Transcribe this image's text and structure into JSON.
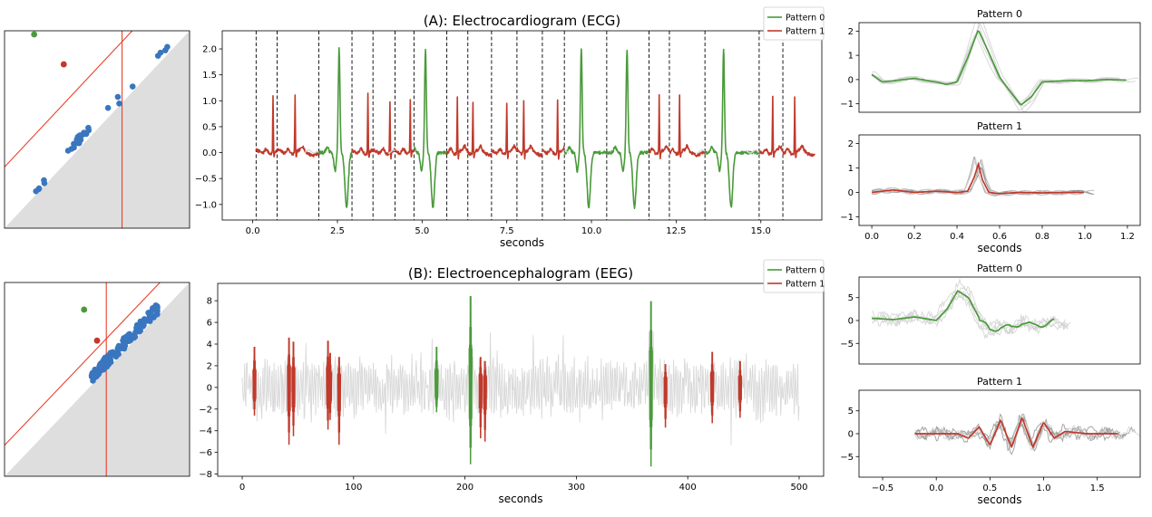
{
  "colors": {
    "pattern0": "#4a9a3b",
    "pattern1": "#c0392b",
    "threshold": "#e8412c",
    "points": "#3a76bf",
    "background_signal": "#d8d8d8",
    "diagram_fill": "#dedede",
    "overlay": "#8f8f8f"
  },
  "chart_data": [
    {
      "id": "persistence-ecg",
      "type": "scatter",
      "title": "",
      "grid": false,
      "ticks": false,
      "shaded_region": "below diagonal",
      "threshold_lines": [
        "diagonal offset line",
        "vertical line"
      ],
      "points_highlighted": [
        {
          "color": "pattern0",
          "x": 0.16,
          "y": 1.0
        },
        {
          "color": "pattern1",
          "x": 0.32,
          "y": 0.83
        }
      ],
      "points_cluster": "blue points spread along the diagonal"
    },
    {
      "id": "ecg",
      "type": "line",
      "title": "(A): Electrocardiogram (ECG)",
      "xlabel": "seconds",
      "ylabel": "",
      "xlim": [
        -0.9,
        16.8
      ],
      "ylim": [
        -1.3,
        2.35
      ],
      "xticks": [
        0.0,
        2.5,
        5.0,
        7.5,
        10.0,
        12.5,
        15.0
      ],
      "xtick_labels": [
        "0.0",
        "2.5",
        "5.0",
        "7.5",
        "10.0",
        "12.5",
        "15.0"
      ],
      "yticks": [
        -1.0,
        -0.5,
        0.0,
        0.5,
        1.0,
        1.5,
        2.0
      ],
      "ytick_labels": [
        "−1.0",
        "−0.5",
        "0.0",
        "0.5",
        "1.0",
        "1.5",
        "2.0"
      ],
      "legend": {
        "placement": "top-right",
        "entries": [
          "Pattern 0",
          "Pattern 1"
        ]
      },
      "series": [
        {
          "name": "Pattern 0",
          "color": "pattern0",
          "beats_at_seconds": [
            2.55,
            5.1,
            9.7,
            11.05,
            13.9
          ]
        },
        {
          "name": "Pattern 1",
          "color": "pattern1",
          "beats_at_seconds": [
            0.6,
            1.25,
            2.85,
            3.4,
            4.05,
            4.65,
            6.5,
            6.9,
            7.5,
            8.0,
            8.5,
            9.0,
            11.4,
            12.6,
            15.35,
            16.0
          ]
        }
      ],
      "segment_boundaries_seconds": [
        0.1,
        0.72,
        1.95,
        2.93,
        3.55,
        4.2,
        4.76,
        5.73,
        6.35,
        7.05,
        7.8,
        8.55,
        9.2,
        10.45,
        11.7,
        12.3,
        13.35,
        14.95,
        15.65
      ]
    },
    {
      "id": "ecg-pattern0",
      "type": "line",
      "title": "Pattern 0",
      "xlim": [
        -0.06,
        1.26
      ],
      "ylim": [
        -1.35,
        2.35
      ],
      "yticks": [
        -1,
        0,
        1,
        2
      ],
      "ytick_labels": [
        "−1",
        "0",
        "1",
        "2"
      ],
      "series": [
        {
          "name": "Pattern 0",
          "color": "pattern0",
          "x": [
            0.0,
            0.05,
            0.1,
            0.2,
            0.3,
            0.35,
            0.4,
            0.45,
            0.5,
            0.55,
            0.6,
            0.65,
            0.7,
            0.75,
            0.8,
            0.9,
            1.0,
            1.1,
            1.2
          ],
          "y": [
            0.2,
            -0.1,
            -0.05,
            0.05,
            -0.1,
            -0.2,
            -0.1,
            0.9,
            2.05,
            1.1,
            0.1,
            -0.5,
            -1.05,
            -0.7,
            -0.1,
            -0.05,
            -0.05,
            0.0,
            -0.02
          ]
        }
      ]
    },
    {
      "id": "ecg-pattern1",
      "type": "line",
      "title": "Pattern 1",
      "xlabel": "seconds",
      "xlim": [
        -0.06,
        1.26
      ],
      "ylim": [
        -1.35,
        2.35
      ],
      "xticks": [
        0.0,
        0.2,
        0.4,
        0.6,
        0.8,
        1.0,
        1.2
      ],
      "xtick_labels": [
        "0.0",
        "0.2",
        "0.4",
        "0.6",
        "0.8",
        "1.0",
        "1.2"
      ],
      "yticks": [
        -1,
        0,
        1,
        2
      ],
      "ytick_labels": [
        "−1",
        "0",
        "1",
        "2"
      ],
      "series": [
        {
          "name": "Pattern 1",
          "color": "pattern1",
          "x": [
            0.0,
            0.1,
            0.2,
            0.3,
            0.4,
            0.45,
            0.48,
            0.5,
            0.52,
            0.55,
            0.6,
            0.7,
            0.8,
            0.9,
            1.0
          ],
          "y": [
            0.0,
            0.1,
            0.0,
            0.05,
            0.0,
            0.05,
            0.6,
            1.15,
            0.5,
            0.0,
            -0.05,
            0.0,
            -0.02,
            0.0,
            0.0
          ]
        }
      ]
    },
    {
      "id": "persistence-eeg",
      "type": "scatter",
      "title": "",
      "grid": false,
      "ticks": false,
      "shaded_region": "below diagonal",
      "threshold_lines": [
        "diagonal offset line",
        "vertical line"
      ],
      "points_highlighted": [
        {
          "color": "pattern0",
          "x": 0.43,
          "y": 0.86
        },
        {
          "color": "pattern1",
          "x": 0.5,
          "y": 0.7
        }
      ],
      "points_cluster": "dense blue band along the diagonal"
    },
    {
      "id": "eeg",
      "type": "line",
      "title": "(B): Electroencephalogram (EEG)",
      "xlabel": "seconds",
      "ylabel": "",
      "xlim": [
        -22,
        522
      ],
      "ylim": [
        -8.2,
        9.6
      ],
      "xticks": [
        0,
        100,
        200,
        300,
        400,
        500
      ],
      "xtick_labels": [
        "0",
        "100",
        "200",
        "300",
        "400",
        "500"
      ],
      "yticks": [
        -8,
        -6,
        -4,
        -2,
        0,
        2,
        4,
        6,
        8
      ],
      "ytick_labels": [
        "−8",
        "−6",
        "−4",
        "−2",
        "0",
        "2",
        "4",
        "6",
        "8"
      ],
      "legend": {
        "placement": "top-right",
        "entries": [
          "Pattern 0",
          "Pattern 1"
        ]
      },
      "series": [
        {
          "name": "Pattern 0",
          "color": "pattern0",
          "events": [
            {
              "t": 174.5,
              "hi": 4.0,
              "lo": -2.3
            },
            {
              "t": 205,
              "hi": 9.0,
              "lo": -7.1
            },
            {
              "t": 367,
              "hi": 8.5,
              "lo": -7.3
            }
          ]
        },
        {
          "name": "Pattern 1",
          "color": "pattern1",
          "events": [
            {
              "t": 11,
              "hi": 4.0,
              "lo": -2.6
            },
            {
              "t": 42,
              "hi": 4.9,
              "lo": -5.3
            },
            {
              "t": 46,
              "hi": 4.5,
              "lo": -4.5
            },
            {
              "t": 77,
              "hi": 4.6,
              "lo": -3.9
            },
            {
              "t": 79,
              "hi": 3.4,
              "lo": -3.0
            },
            {
              "t": 87,
              "hi": 3.0,
              "lo": -5.3
            },
            {
              "t": 214,
              "hi": 3.0,
              "lo": -4.7
            },
            {
              "t": 218,
              "hi": 2.6,
              "lo": -5.0
            },
            {
              "t": 380,
              "hi": 2.3,
              "lo": -3.7
            },
            {
              "t": 422,
              "hi": 3.5,
              "lo": -3.3
            },
            {
              "t": 447,
              "hi": 2.6,
              "lo": -2.8
            }
          ]
        }
      ]
    },
    {
      "id": "eeg-pattern0",
      "type": "line",
      "title": "Pattern 0",
      "xlim": [
        -0.72,
        1.9
      ],
      "ylim": [
        -9.5,
        9.5
      ],
      "yticks": [
        -5,
        0,
        5
      ],
      "ytick_labels": [
        "−5",
        "0",
        "5"
      ],
      "series": [
        {
          "name": "Pattern 0",
          "color": "pattern0",
          "x": [
            -0.6,
            -0.4,
            -0.2,
            0.0,
            0.1,
            0.2,
            0.3,
            0.4,
            0.5,
            0.6,
            0.7,
            0.8,
            0.9,
            1.0,
            1.1
          ],
          "y": [
            0.5,
            0.2,
            0.8,
            0.0,
            2.5,
            6.5,
            5.0,
            0.5,
            -2.5,
            -1.0,
            -2.0,
            0.0,
            -1.5,
            -0.5,
            -0.5
          ]
        }
      ]
    },
    {
      "id": "eeg-pattern1",
      "type": "line",
      "title": "Pattern 1",
      "xlabel": "seconds",
      "xlim": [
        -0.72,
        1.9
      ],
      "ylim": [
        -9.5,
        9.5
      ],
      "xticks": [
        -0.5,
        0.0,
        0.5,
        1.0,
        1.5
      ],
      "xtick_labels": [
        "−0.5",
        "0.0",
        "0.5",
        "1.0",
        "1.5"
      ],
      "yticks": [
        -5,
        0,
        5
      ],
      "ytick_labels": [
        "−5",
        "0",
        "5"
      ],
      "series": [
        {
          "name": "Pattern 1",
          "color": "pattern1",
          "x": [
            -0.2,
            0.0,
            0.2,
            0.3,
            0.4,
            0.5,
            0.6,
            0.7,
            0.8,
            0.9,
            1.0,
            1.1,
            1.2,
            1.4,
            1.7
          ],
          "y": [
            0.0,
            0.0,
            0.0,
            -1.0,
            1.5,
            -2.5,
            3.0,
            -3.0,
            3.5,
            -3.0,
            2.5,
            -1.0,
            0.5,
            0.0,
            0.0
          ]
        }
      ]
    }
  ]
}
